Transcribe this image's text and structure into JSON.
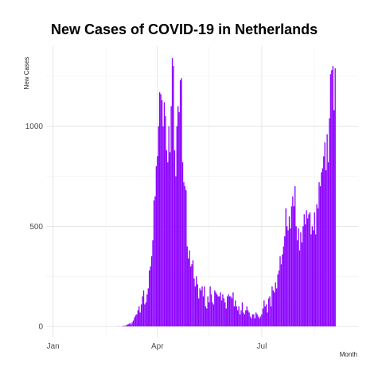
{
  "chart_data": {
    "type": "bar",
    "title": "New Cases of COVID-19 in Netherlands",
    "xlabel": "Month",
    "ylabel": "New Cases",
    "x_ticks": [
      "Jan",
      "Apr",
      "Jul"
    ],
    "y_ticks": [
      0,
      500,
      1000
    ],
    "ylim": [
      -55,
      1400
    ],
    "grid": true,
    "bar_color": "#8B00FF",
    "series": [
      {
        "start_date": "2020-01-22",
        "values": [
          0,
          0,
          0,
          0,
          0,
          0,
          0,
          0,
          0,
          0,
          0,
          0,
          0,
          0,
          0,
          0,
          0,
          0,
          0,
          0,
          0,
          0,
          0,
          0,
          0,
          0,
          0,
          0,
          0,
          0,
          0,
          0,
          0,
          0,
          0,
          0,
          1,
          0,
          0,
          1,
          2,
          3,
          3,
          6,
          10,
          12,
          18,
          10,
          20,
          30,
          45,
          55,
          60,
          80,
          100,
          70,
          110,
          150,
          180,
          110,
          120,
          160,
          190,
          280,
          300,
          350,
          430,
          630,
          650,
          800,
          850,
          1000,
          1170,
          1160,
          1130,
          1000,
          1120,
          1050,
          880,
          820,
          1000,
          870,
          1100,
          1340,
          1300,
          880,
          750,
          1000,
          1100,
          1070,
          1230,
          1240,
          820,
          720,
          700,
          680,
          400,
          340,
          380,
          300,
          310,
          330,
          240,
          200,
          250,
          210,
          140,
          190,
          180,
          200,
          150,
          200,
          100,
          90,
          150,
          120,
          200,
          160,
          120,
          110,
          180,
          170,
          160,
          150,
          150,
          170,
          130,
          160,
          140,
          120,
          90,
          150,
          160,
          150,
          150,
          140,
          170,
          100,
          130,
          100,
          80,
          100,
          60,
          80,
          120,
          70,
          60,
          80,
          100,
          80,
          70,
          50,
          40,
          60,
          60,
          40,
          70,
          60,
          50,
          40,
          50,
          60,
          90,
          130,
          100,
          110,
          70,
          140,
          150,
          100,
          200,
          180,
          170,
          220,
          190,
          260,
          280,
          350,
          310,
          360,
          400,
          450,
          590,
          500,
          480,
          550,
          490,
          600,
          650,
          600,
          700,
          500,
          430,
          490,
          380,
          470,
          420,
          500,
          560,
          510,
          580,
          540,
          560,
          570,
          460,
          500,
          480,
          570,
          460,
          610,
          590,
          720,
          700,
          770,
          790,
          850,
          920,
          780,
          960,
          820,
          1040,
          1260,
          1280,
          1300,
          1080,
          1290
        ]
      }
    ]
  }
}
